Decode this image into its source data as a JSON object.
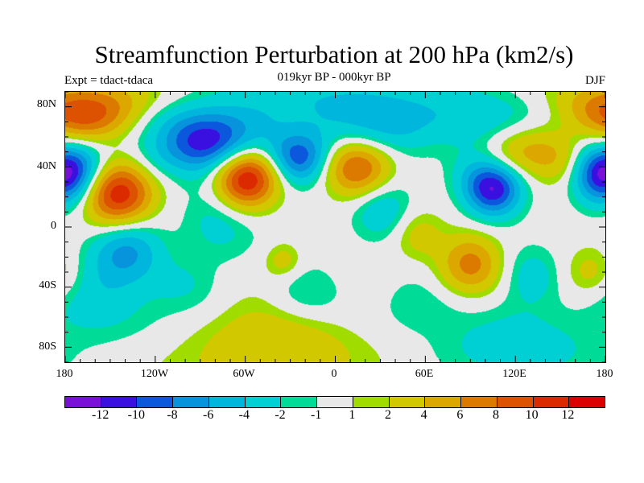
{
  "title": "Streamfunction Perturbation at 200 hPa (km2/s)",
  "left_subtitle": "Expt = tdact-tdaca",
  "center_subtitle": "019kyr BP - 000kyr BP",
  "right_subtitle": "DJF",
  "lat_labels": [
    "80N",
    "40N",
    "0",
    "40S",
    "80S"
  ],
  "lon_labels": [
    "180",
    "120W",
    "60W",
    "0",
    "60E",
    "120E",
    "180"
  ],
  "colorbar": {
    "levels": [
      "-12",
      "-10",
      "-8",
      "-6",
      "-4",
      "-2",
      "-1",
      "1",
      "2",
      "4",
      "6",
      "8",
      "10",
      "12"
    ],
    "level_values": [
      -12,
      -10,
      -8,
      -6,
      -4,
      -2,
      -1,
      1,
      2,
      4,
      6,
      8,
      10,
      12
    ],
    "colors": [
      "#7a10d8",
      "#3a10e0",
      "#0c58dc",
      "#0894dc",
      "#00b6dc",
      "#00d0d4",
      "#00dc98",
      "#e8e8e8",
      "#a0dc00",
      "#d2c800",
      "#dca800",
      "#dc7a00",
      "#dc5200",
      "#dc2a00",
      "#dc0000"
    ]
  }
}
